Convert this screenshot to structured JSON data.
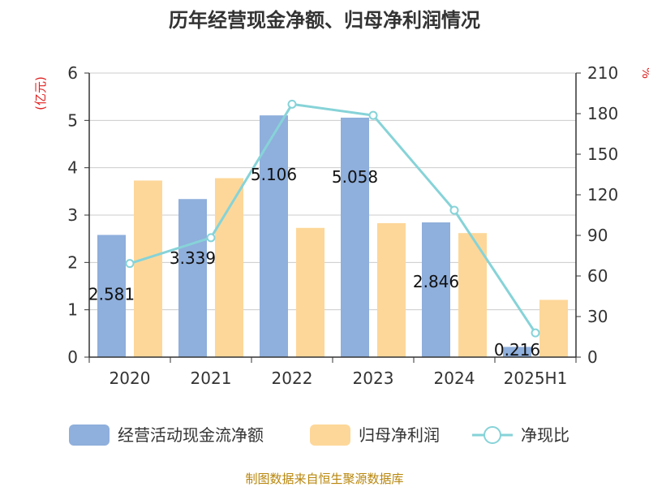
{
  "chart_data": {
    "type": "bar",
    "title": "历年经营现金净额、归母净利润情况",
    "categories": [
      "2020",
      "2021",
      "2022",
      "2023",
      "2024",
      "2025H1"
    ],
    "left_unit": "(亿元)",
    "right_unit": "%",
    "ylim": [
      0,
      6
    ],
    "left_ticks": [
      "0",
      "1",
      "2",
      "3",
      "4",
      "5",
      "6"
    ],
    "y2lim": [
      0,
      210
    ],
    "right_ticks": [
      "0",
      "30",
      "60",
      "90",
      "120",
      "150",
      "180",
      "210"
    ],
    "grid": true,
    "legend_position": "bottom",
    "series": [
      {
        "name": "经营活动现金流净额",
        "kind": "bar",
        "axis": "left",
        "color": "#8fafdc",
        "values": [
          2.581,
          3.339,
          5.106,
          5.058,
          2.846,
          0.216
        ],
        "labels": [
          "2.581",
          "3.339",
          "5.106",
          "5.058",
          "2.846",
          "0.216"
        ]
      },
      {
        "name": "归母净利润",
        "kind": "bar",
        "axis": "left",
        "color": "#fdd799",
        "values": [
          3.73,
          3.78,
          2.73,
          2.83,
          2.62,
          1.21
        ]
      },
      {
        "name": "净现比",
        "kind": "line",
        "axis": "right",
        "color": "#86d3d8",
        "values": [
          69.2,
          88.3,
          187.0,
          178.7,
          108.6,
          17.9
        ]
      }
    ]
  },
  "footer": {
    "source": "制图数据来自恒生聚源数据库"
  }
}
